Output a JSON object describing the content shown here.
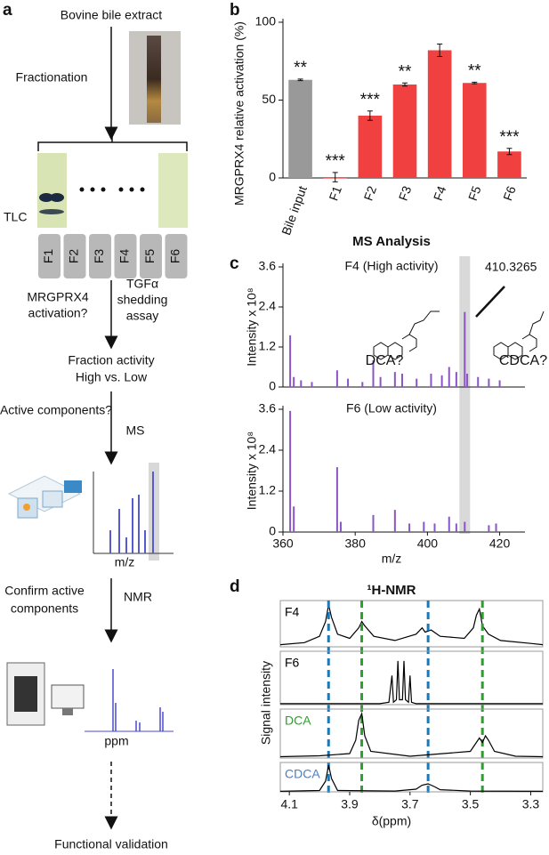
{
  "panel_labels": [
    "a",
    "b",
    "c",
    "d"
  ],
  "diagram": {
    "source": "Bovine bile extract",
    "fractionation": "Fractionation",
    "tlc": "TLC",
    "fractions": [
      "F1",
      "F2",
      "F3",
      "F4",
      "F5",
      "F6"
    ],
    "question1": [
      "MRGPRX4",
      "activation?"
    ],
    "assay": [
      "TGFα",
      "shedding",
      "assay"
    ],
    "result": [
      "Fraction activity",
      "High vs. Low"
    ],
    "question2": "Active components?",
    "method1": "MS",
    "spectrum_axis": "m/z",
    "question3": [
      "Confirm active",
      "components"
    ],
    "method2": "NMR",
    "nmr_axis": "ppm",
    "final": "Functional validation"
  },
  "chart_data": [
    {
      "type": "bar",
      "ylabel": "MRGPRX4 relative activation (%)",
      "categories": [
        "Bile input",
        "F1",
        "F2",
        "F3",
        "F4",
        "F5",
        "F6"
      ],
      "values": [
        63,
        0.5,
        40,
        60,
        82,
        61,
        17
      ],
      "errors": [
        0.5,
        3,
        3,
        1,
        4,
        0.5,
        2
      ],
      "colors": [
        "#999999",
        "#f04040",
        "#f04040",
        "#f04040",
        "#f04040",
        "#f04040",
        "#f04040"
      ],
      "annotations": [
        "**",
        "***",
        "***",
        "**",
        null,
        "**",
        "***"
      ],
      "ylim": [
        0,
        100
      ],
      "yticks": [
        0,
        50,
        100
      ]
    },
    {
      "type": "stem",
      "title": "MS Analysis",
      "label": "F4 (High activity)",
      "ylabel": "Intensity x 10⁸",
      "color": "#8a55c4",
      "x": [
        362,
        363,
        365,
        368,
        375,
        378,
        382,
        385,
        387,
        391,
        393,
        397,
        401,
        404,
        406,
        408,
        410.3265,
        411,
        414,
        417,
        420
      ],
      "values": [
        1.55,
        0.3,
        0.2,
        0.15,
        0.5,
        0.25,
        0.15,
        0.8,
        0.3,
        0.45,
        0.4,
        0.25,
        0.4,
        0.35,
        0.6,
        0.45,
        2.25,
        0.4,
        0.3,
        0.25,
        0.2
      ],
      "highlight_x": 410.3265,
      "annotations": [
        "410.3265",
        "DCA?",
        "CDCA?"
      ],
      "xlim": [
        360,
        427
      ],
      "ylim": [
        0,
        3.6
      ],
      "yticks": [
        0,
        1.2,
        2.4,
        3.6
      ]
    },
    {
      "type": "stem",
      "label": "F6 (Low activity)",
      "ylabel": "Intensity x 10⁸",
      "xlabel": "m/z",
      "color": "#8a55c4",
      "x": [
        362,
        363,
        375,
        376,
        385,
        391,
        395,
        399,
        402,
        406,
        408,
        410.3265,
        417,
        419
      ],
      "values": [
        3.55,
        0.75,
        1.9,
        0.3,
        0.5,
        0.65,
        0.25,
        0.3,
        0.25,
        0.45,
        0.25,
        0.3,
        0.2,
        0.25
      ],
      "xlim": [
        360,
        427
      ],
      "ylim": [
        0,
        3.6
      ],
      "yticks": [
        0,
        1.2,
        2.4,
        3.6
      ],
      "xticks": [
        360,
        380,
        400,
        420
      ]
    },
    {
      "type": "line",
      "title": "¹H-NMR",
      "label": "F4",
      "label_color": "#000000",
      "color": "#000000",
      "x": [
        4.13,
        4.05,
        4.0,
        3.98,
        3.97,
        3.96,
        3.94,
        3.9,
        3.87,
        3.86,
        3.85,
        3.82,
        3.75,
        3.68,
        3.66,
        3.65,
        3.63,
        3.6,
        3.52,
        3.49,
        3.48,
        3.47,
        3.46,
        3.44,
        3.4,
        3.3,
        3.26
      ],
      "values": [
        0.05,
        0.1,
        0.25,
        0.6,
        1.0,
        0.7,
        0.3,
        0.2,
        0.45,
        0.6,
        0.5,
        0.25,
        0.15,
        0.3,
        0.45,
        0.35,
        0.4,
        0.25,
        0.2,
        0.45,
        0.75,
        0.9,
        0.5,
        0.3,
        0.15,
        0.08,
        0.05
      ],
      "reference_lines": [
        {
          "value": 3.97,
          "color": "#1f77b4"
        },
        {
          "value": 3.64,
          "color": "#1f77b4"
        },
        {
          "value": 3.86,
          "color": "#2ca02c"
        },
        {
          "value": 3.46,
          "color": "#2ca02c"
        }
      ],
      "xlim": [
        4.13,
        3.26
      ],
      "ylim": [
        0,
        1.1
      ]
    },
    {
      "type": "line",
      "label": "F6",
      "label_color": "#000000",
      "color": "#000000",
      "x": [
        4.13,
        3.8,
        3.77,
        3.76,
        3.755,
        3.745,
        3.74,
        3.735,
        3.725,
        3.72,
        3.715,
        3.705,
        3.7,
        3.695,
        3.68,
        3.26
      ],
      "values": [
        0.02,
        0.02,
        0.05,
        0.6,
        0.05,
        0.1,
        0.9,
        0.1,
        0.1,
        0.9,
        0.1,
        0.05,
        0.6,
        0.05,
        0.02,
        0.02
      ],
      "xlim": [
        4.13,
        3.26
      ],
      "ylim": [
        0,
        1.1
      ]
    },
    {
      "type": "line",
      "label": "DCA",
      "label_color": "#2ca02c",
      "color": "#000000",
      "ylabel": "Signal intensity",
      "x": [
        4.13,
        4.0,
        3.9,
        3.88,
        3.87,
        3.86,
        3.85,
        3.83,
        3.7,
        3.5,
        3.48,
        3.47,
        3.46,
        3.45,
        3.44,
        3.42,
        3.35,
        3.26
      ],
      "values": [
        0.03,
        0.05,
        0.1,
        0.4,
        0.85,
        1.0,
        0.5,
        0.15,
        0.04,
        0.15,
        0.35,
        0.45,
        0.35,
        0.5,
        0.4,
        0.15,
        0.04,
        0.03
      ],
      "xlim": [
        4.13,
        3.26
      ],
      "ylim": [
        0,
        1.1
      ]
    },
    {
      "type": "line",
      "label": "CDCA",
      "label_color": "#4a7fc0",
      "color": "#000000",
      "xlabel": "δ(ppm)",
      "x": [
        4.13,
        4.0,
        3.98,
        3.97,
        3.96,
        3.94,
        3.75,
        3.68,
        3.66,
        3.64,
        3.62,
        3.6,
        3.5,
        3.26
      ],
      "values": [
        0.02,
        0.05,
        0.4,
        1.0,
        0.5,
        0.05,
        0.03,
        0.1,
        0.25,
        0.3,
        0.2,
        0.08,
        0.03,
        0.02
      ],
      "xlim": [
        4.13,
        3.26
      ],
      "ylim": [
        0,
        1.1
      ],
      "xticks": [
        4.1,
        3.9,
        3.7,
        3.5,
        3.3
      ]
    }
  ]
}
